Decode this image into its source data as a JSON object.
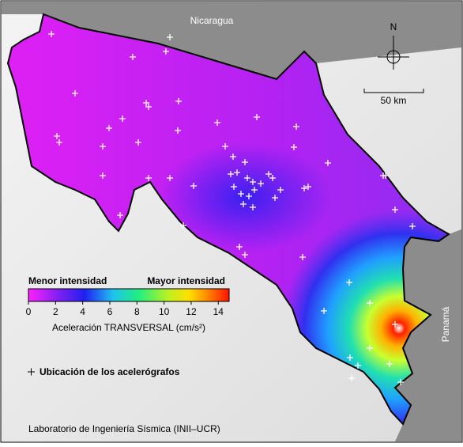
{
  "map": {
    "labels": {
      "north": "N",
      "nicaragua": "Nicaragua",
      "panama": "Panamá",
      "scale": "50 km"
    },
    "colorbar": {
      "low_label": "Menor intensidad",
      "high_label": "Mayor intensidad",
      "title": "Aceleración TRANSVERSAL (cm/s²)",
      "lim": [
        0,
        14.8
      ],
      "ticks": [
        0,
        2,
        4,
        6,
        8,
        10,
        12,
        14
      ]
    },
    "legend": {
      "stations": "Ubicación de los acelerógrafos"
    },
    "credit": "Laboratorio de Ingeniería Sísmica (INII–UCR)"
  }
}
